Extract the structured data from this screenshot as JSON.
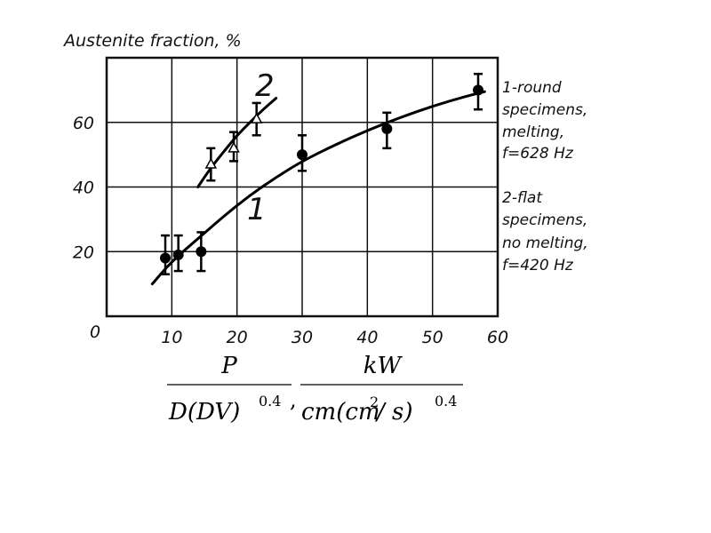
{
  "chart_data": {
    "type": "scatter",
    "ylabel": "Austenite fraction, %",
    "origin_label": "0",
    "xlim": [
      0,
      60
    ],
    "ylim": [
      0,
      80
    ],
    "x_ticks": [
      "10",
      "20",
      "30",
      "40",
      "50",
      "60"
    ],
    "y_ticks": [
      "20",
      "40",
      "60"
    ],
    "grid": true,
    "series": [
      {
        "name": "1",
        "marker": "filled-circle",
        "points": [
          {
            "x": 9,
            "y": 18,
            "err_low": 13,
            "err_high": 25
          },
          {
            "x": 11,
            "y": 19,
            "err_low": 14,
            "err_high": 25
          },
          {
            "x": 14.5,
            "y": 20,
            "err_low": 14,
            "err_high": 26
          },
          {
            "x": 30,
            "y": 50,
            "err_low": 45,
            "err_high": 56
          },
          {
            "x": 43,
            "y": 58,
            "err_low": 52,
            "err_high": 63
          },
          {
            "x": 57,
            "y": 70,
            "err_low": 64,
            "err_high": 75
          }
        ],
        "fit_curve": [
          [
            7,
            10
          ],
          [
            10,
            17
          ],
          [
            14,
            24
          ],
          [
            18,
            31
          ],
          [
            22,
            37.5
          ],
          [
            26,
            43
          ],
          [
            30,
            48
          ],
          [
            35,
            53
          ],
          [
            40,
            57.5
          ],
          [
            45,
            61.5
          ],
          [
            50,
            65
          ],
          [
            55,
            68
          ],
          [
            58,
            69.5
          ]
        ]
      },
      {
        "name": "2",
        "marker": "open-triangle",
        "points": [
          {
            "x": 16,
            "y": 47,
            "err_low": 42,
            "err_high": 52
          },
          {
            "x": 19.5,
            "y": 52,
            "err_low": 48,
            "err_high": 57
          },
          {
            "x": 23,
            "y": 61,
            "err_low": 56,
            "err_high": 66
          }
        ],
        "fit_curve": [
          [
            14,
            40
          ],
          [
            16,
            46
          ],
          [
            18,
            51
          ],
          [
            20,
            56
          ],
          [
            22,
            60
          ],
          [
            24,
            64
          ],
          [
            26,
            67.5
          ]
        ]
      }
    ],
    "legend_lines": [
      "1-round",
      "specimens,",
      "melting,",
      "f=628 Hz",
      "2-flat",
      "specimens,",
      "no melting,",
      "f=420 Hz"
    ],
    "xlabel": {
      "left_numerator": "P",
      "left_denominator_main": "D(DV)",
      "left_denominator_exp": "0.4",
      "separator": ",",
      "right_numerator": "kW",
      "right_denominator_a": "cm(cm",
      "right_denominator_sup": "2",
      "right_denominator_b": " / s)",
      "right_denominator_exp": "0.4"
    }
  }
}
